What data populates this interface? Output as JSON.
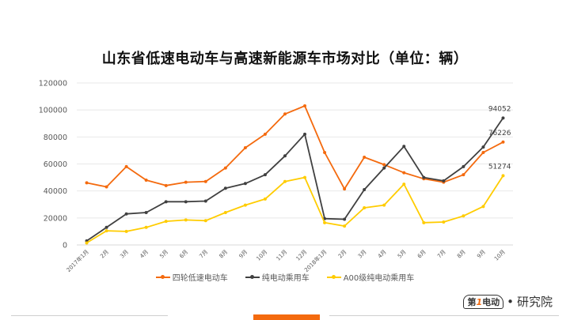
{
  "page": {
    "title": "山东省低速电动车与高速新能源车市场对比（单位：辆）",
    "footer_logo": {
      "mark": "第1电动",
      "dot": "•",
      "suffix": "研究院"
    }
  },
  "chart_data": {
    "type": "line",
    "title": "山东省低速电动车与高速新能源车市场对比（单位：辆）",
    "xlabel": "",
    "ylabel": "",
    "ylim": [
      0,
      120000
    ],
    "yticks": [
      0,
      20000,
      40000,
      60000,
      80000,
      100000,
      120000
    ],
    "ytick_labels": [
      "0",
      "20000",
      "40000",
      "60000",
      "80000",
      "100000",
      "120000"
    ],
    "grid": true,
    "legend_position": "bottom",
    "categories": [
      "2017年1月",
      "2月",
      "3月",
      "4月",
      "5月",
      "6月",
      "7月",
      "8月",
      "9月",
      "10月",
      "11月",
      "12月",
      "2018年1月",
      "2月",
      "3月",
      "4月",
      "5月",
      "6月",
      "7月",
      "8月",
      "9月",
      "10月"
    ],
    "series": [
      {
        "name": "四轮低速电动车",
        "color": "#f46a0e",
        "values": [
          46000,
          43000,
          58000,
          48000,
          44000,
          46500,
          47000,
          57000,
          72000,
          82000,
          97000,
          103000,
          68500,
          41500,
          65000,
          59500,
          53500,
          49000,
          46500,
          52000,
          68500,
          76226
        ]
      },
      {
        "name": "纯电动乘用车",
        "color": "#404040",
        "values": [
          3000,
          13000,
          23000,
          24000,
          32000,
          32000,
          32500,
          42000,
          45500,
          52000,
          66000,
          82000,
          19500,
          19000,
          41000,
          57000,
          73000,
          50000,
          47500,
          58000,
          72500,
          94052
        ]
      },
      {
        "name": "A00级纯电动乘用车",
        "color": "#ffcc00",
        "values": [
          1500,
          10500,
          10000,
          13000,
          17500,
          18500,
          18000,
          24000,
          29500,
          34000,
          47000,
          50000,
          16500,
          14000,
          27500,
          29500,
          45000,
          16500,
          17000,
          21500,
          28500,
          51274
        ]
      }
    ],
    "annotations": [
      {
        "series": "纯电动乘用车",
        "index": 21,
        "label": "94052"
      },
      {
        "series": "四轮低速电动车",
        "index": 21,
        "label": "76226"
      },
      {
        "series": "A00级纯电动乘用车",
        "index": 21,
        "label": "51274"
      }
    ]
  }
}
